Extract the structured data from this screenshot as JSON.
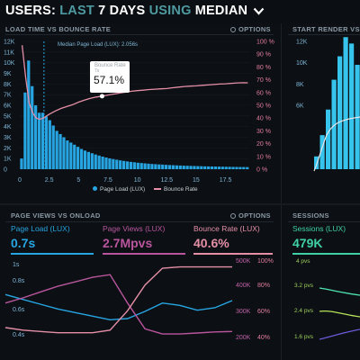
{
  "header": {
    "users": "USERS:",
    "last": "LAST",
    "days": "7 DAYS",
    "using": "USING",
    "median": "MEDIAN"
  },
  "load_panel": {
    "title": "LOAD TIME VS BOUNCE RATE",
    "options": "OPTIONS",
    "median_label": "Median Page Load (LUX): 2.056s",
    "tooltip": {
      "label": "Bounce Rate",
      "sub": "7s",
      "value": "57.1%"
    },
    "legend_load": "Page Load (LUX)",
    "legend_bounce": "Bounce Rate"
  },
  "start_panel": {
    "title": "START RENDER VS B"
  },
  "views_panel": {
    "title": "PAGE VIEWS VS ONLOAD",
    "options": "OPTIONS",
    "stats": [
      {
        "label": "Page Load (LUX)",
        "value": "0.7s"
      },
      {
        "label": "Page Views (LUX)",
        "value": "2.7Mpvs"
      },
      {
        "label": "Bounce Rate (LUX)",
        "value": "40.6%"
      }
    ],
    "y_left_unit": "1s",
    "y_left": [
      "0.8s",
      "0.6s",
      "0.4s"
    ],
    "y_mid": [
      "500K",
      "400K",
      "300K",
      "200K"
    ],
    "y_right": [
      "100%",
      "80%",
      "60%",
      "40%"
    ]
  },
  "sessions_panel": {
    "title": "SESSIONS",
    "stat_label": "Sessions (LUX)",
    "stat_value": "479K",
    "y": [
      "4 pvs",
      "3.2 pvs",
      "2.4 pvs",
      "1.6 pvs"
    ]
  },
  "colors": {
    "bg": "#0c1014",
    "blue": "#27a5e2",
    "cyan": "#36c4ec",
    "pink": "#e58fa7",
    "magenta": "#b9559d",
    "teal_text": "#4e9aa0"
  },
  "chart_data": [
    {
      "type": "bar",
      "title": "LOAD TIME VS BOUNCE RATE",
      "x": [
        0.15,
        0.45,
        0.75,
        1.05,
        1.35,
        1.65,
        1.95,
        2.25,
        2.55,
        2.85,
        3.15,
        3.45,
        3.75,
        4.05,
        4.35,
        4.65,
        4.95,
        5.25,
        5.55,
        5.85,
        6.15,
        6.45,
        6.75,
        7.05,
        7.35,
        7.65,
        7.95,
        8.25,
        8.55,
        8.85,
        9.15,
        9.45,
        9.75,
        10.05,
        10.35,
        10.65,
        10.95,
        11.25,
        11.55,
        11.85,
        12.15,
        12.45,
        12.75,
        13.05,
        13.35,
        13.65,
        13.95,
        14.25,
        14.55,
        14.85,
        15.15,
        15.45,
        15.75,
        16.05,
        16.35,
        16.65,
        16.95,
        17.25,
        17.55,
        17.85,
        18.15,
        18.45,
        18.75,
        19.05,
        19.35
      ],
      "xticks": [
        "0",
        "2.5",
        "5",
        "7.5",
        "10",
        "12.5",
        "15",
        "17.5"
      ],
      "xlim": [
        0,
        19.6
      ],
      "left_axis": {
        "ticks": [
          "12K",
          "11K",
          "10K",
          "9K",
          "8K",
          "7K",
          "6K",
          "5K",
          "4K",
          "3K",
          "2K",
          "1K",
          "0"
        ],
        "ylim": [
          0,
          12000
        ]
      },
      "right_axis": {
        "ticks": [
          "100 %",
          "90 %",
          "80 %",
          "70 %",
          "60 %",
          "50 %",
          "40 %",
          "30 %",
          "20 %",
          "10 %",
          "0 %"
        ],
        "ylim": [
          0,
          100
        ]
      },
      "series": [
        {
          "name": "Page Load (LUX)",
          "type": "bar",
          "values": [
            1000,
            7200,
            10200,
            7800,
            6000,
            5300,
            5300,
            4950,
            4600,
            4100,
            3600,
            3300,
            3000,
            2700,
            2500,
            2300,
            2100,
            1900,
            1750,
            1620,
            1500,
            1380,
            1280,
            1180,
            1100,
            1020,
            950,
            890,
            830,
            780,
            730,
            690,
            650,
            610,
            580,
            550,
            520,
            490,
            470,
            450,
            430,
            410,
            390,
            375,
            360,
            345,
            330,
            320,
            310,
            300,
            290,
            280,
            270,
            262,
            255,
            248,
            240,
            234,
            228,
            222,
            216,
            210,
            205,
            200,
            195
          ]
        },
        {
          "name": "Bounce Rate",
          "type": "line",
          "x": [
            0.2,
            0.5,
            0.8,
            1.1,
            1.4,
            1.7,
            2.0,
            2.5,
            3,
            3.5,
            4,
            4.5,
            5,
            5.5,
            6,
            6.5,
            7,
            7.5,
            8,
            8.5,
            9,
            9.5,
            10,
            10.5,
            11,
            11.5,
            12,
            12.5,
            13,
            13.5,
            14,
            14.5,
            15,
            15.5,
            16,
            16.5,
            17,
            17.5,
            18,
            18.5,
            19,
            19.4
          ],
          "values": [
            97,
            72,
            52,
            44,
            40,
            39,
            40,
            43,
            45.5,
            47.5,
            49,
            50.5,
            52.5,
            54,
            55.5,
            56.5,
            57.1,
            58,
            58.8,
            59.6,
            60.3,
            61,
            61.5,
            61.8,
            62.3,
            62.6,
            62.9,
            63.1,
            63.7,
            64.2,
            64.7,
            65,
            65.2,
            65.6,
            65.9,
            66.3,
            66.6,
            66.8,
            67.2,
            67.5,
            67.7,
            67.6
          ]
        }
      ],
      "median_x": 2.056,
      "legend": "bottom"
    },
    {
      "type": "line",
      "title": "PAGE VIEWS VS ONLOAD",
      "left_axis": {
        "ticks": [
          "1s",
          "0.8s",
          "0.6s",
          "0.4s"
        ]
      },
      "mid_axis": {
        "ticks": [
          "500K",
          "400K",
          "300K",
          "200K"
        ]
      },
      "right_axis": {
        "ticks": [
          "100%",
          "80%",
          "60%",
          "40%"
        ]
      },
      "series": [
        {
          "name": "Page Load (LUX)",
          "values": [
            0.75,
            0.71,
            0.67,
            0.63,
            0.6,
            0.57,
            0.54,
            0.55,
            0.61,
            0.68,
            0.66,
            0.62,
            0.64,
            0.7
          ]
        },
        {
          "name": "Page Views (LUX)",
          "values": [
            330000,
            350000,
            373000,
            395000,
            412000,
            430000,
            440000,
            330000,
            230000,
            210000,
            210000,
            214000,
            218000,
            220000
          ]
        },
        {
          "name": "Bounce Rate (LUX)",
          "values": [
            47,
            45,
            44,
            43,
            43,
            43,
            45,
            60,
            80,
            93,
            94,
            94,
            94,
            94
          ]
        }
      ]
    }
  ]
}
